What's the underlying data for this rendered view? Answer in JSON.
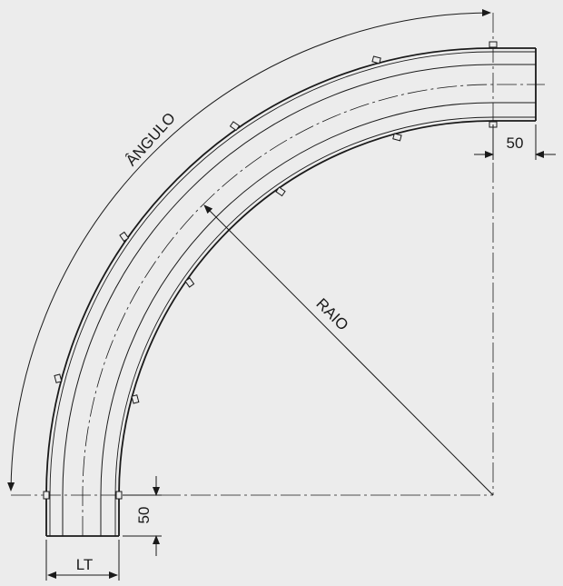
{
  "diagram": {
    "angle_label": "ÂNGULO",
    "radius_label": "RAIO",
    "extension_right_label": "50",
    "extension_bottom_label": "50",
    "width_label": "LT"
  },
  "colors": {
    "background": "#ececec",
    "line": "#1a1a1a"
  }
}
